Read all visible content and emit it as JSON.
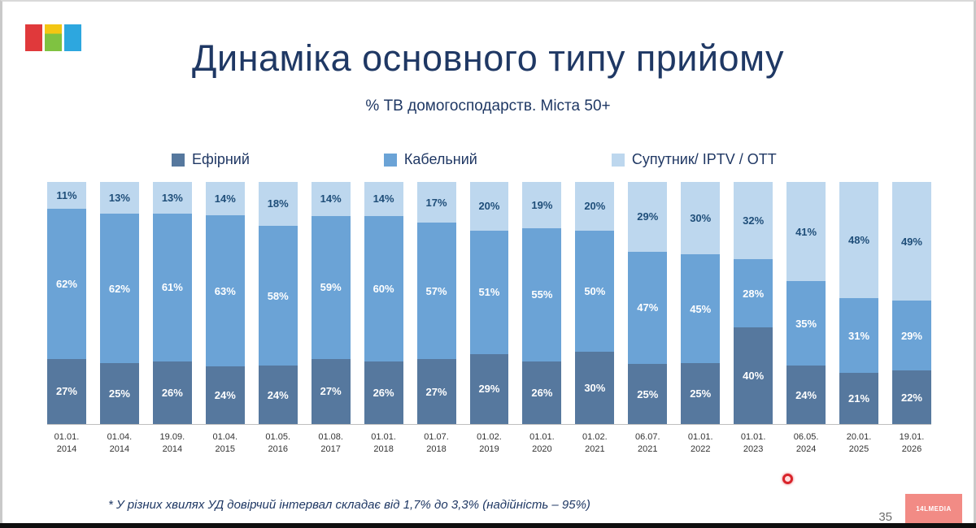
{
  "slide": {
    "title": "Динаміка основного типу прийому",
    "subtitle": "% ТВ домогосподарств. Міста 50+",
    "footnote": "* У різних хвилях УД довірчий інтервал складає від 1,7% до 3,3% (надійність – 95%)",
    "page_number": "35",
    "watermark": "14LMEDIA"
  },
  "colors": {
    "terrestrial": "#56789e",
    "cable": "#6ba3d6",
    "satellite": "#bdd7ee",
    "title": "#1f3864",
    "label_light": "#ffffff",
    "label_dark": "#1f4e79"
  },
  "chart_data": {
    "type": "bar",
    "stacked": true,
    "unit": "%",
    "title": "Динаміка основного типу прийому",
    "subtitle": "% ТВ домогосподарств. Міста 50+",
    "legend_position": "top",
    "ylim": [
      0,
      100
    ],
    "categories": [
      [
        "01.01.",
        "2014"
      ],
      [
        "01.04.",
        "2014"
      ],
      [
        "19.09.",
        "2014"
      ],
      [
        "01.04.",
        "2015"
      ],
      [
        "01.05.",
        "2016"
      ],
      [
        "01.08.",
        "2017"
      ],
      [
        "01.01.",
        "2018"
      ],
      [
        "01.07.",
        "2018"
      ],
      [
        "01.02.",
        "2019"
      ],
      [
        "01.01.",
        "2020"
      ],
      [
        "01.02.",
        "2021"
      ],
      [
        "06.07.",
        "2021"
      ],
      [
        "01.01.",
        "2022"
      ],
      [
        "01.01.",
        "2023"
      ],
      [
        "06.05.",
        "2024"
      ],
      [
        "20.01.",
        "2025"
      ],
      [
        "19.01.",
        "2026"
      ]
    ],
    "series": [
      {
        "name": "Ефірний",
        "color_key": "terrestrial",
        "values": [
          27,
          25,
          26,
          24,
          24,
          27,
          26,
          27,
          29,
          26,
          30,
          25,
          25,
          40,
          24,
          21,
          22
        ]
      },
      {
        "name": "Кабельний",
        "color_key": "cable",
        "values": [
          62,
          62,
          61,
          63,
          58,
          59,
          60,
          57,
          51,
          55,
          50,
          47,
          45,
          28,
          35,
          31,
          29
        ]
      },
      {
        "name": "Супутник/ IPTV / OTT",
        "color_key": "satellite",
        "values": [
          11,
          13,
          13,
          14,
          18,
          14,
          14,
          17,
          20,
          19,
          20,
          29,
          30,
          32,
          41,
          48,
          49
        ]
      }
    ]
  }
}
